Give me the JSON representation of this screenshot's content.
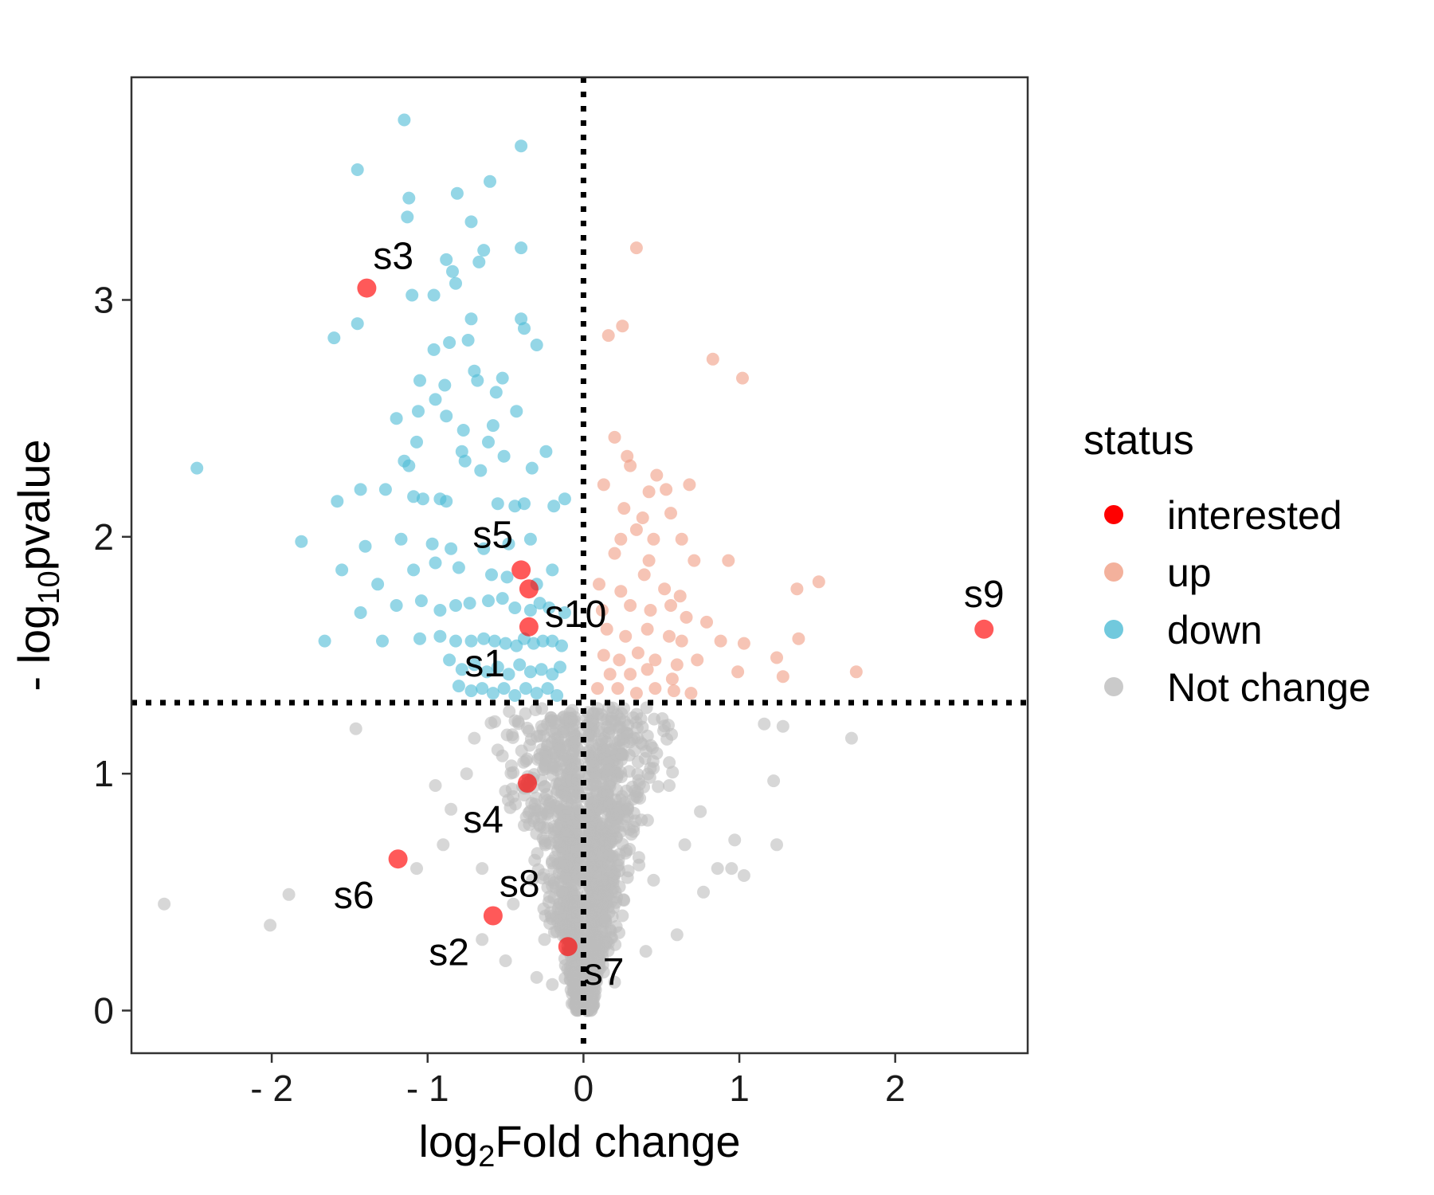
{
  "chart_data": {
    "type": "scatter",
    "xlabel": {
      "prefix": "log",
      "sub": "2",
      "suffix": "Fold change"
    },
    "ylabel": {
      "prefix": "- log",
      "sub": "10",
      "suffix": "pvalue"
    },
    "xlim": [
      -2.9,
      2.85
    ],
    "ylim": [
      -0.18,
      3.94
    ],
    "x_ticks": [
      -2,
      -1,
      0,
      1,
      2
    ],
    "x_tick_labels": [
      "- 2",
      "- 1",
      "0",
      "1",
      "2"
    ],
    "y_ticks": [
      0,
      1,
      2,
      3
    ],
    "y_tick_labels": [
      "0",
      "1",
      "2",
      "3"
    ],
    "grid": false,
    "threshold_lines": {
      "x": 0,
      "y": 1.3
    },
    "legend": {
      "title": "status",
      "position": "right",
      "entries": [
        {
          "label": "interested",
          "color": "#ff0000"
        },
        {
          "label": "up",
          "color": "#f09d83"
        },
        {
          "label": "down",
          "color": "#4dbbd5"
        },
        {
          "label": "Not change",
          "color": "#bdbdbd"
        }
      ]
    },
    "labeled_points": [
      {
        "label": "s1",
        "x": -0.35,
        "y": 1.62,
        "label_pos": "below-left"
      },
      {
        "label": "s2",
        "x": -0.58,
        "y": 0.4,
        "label_pos": "below-left"
      },
      {
        "label": "s3",
        "x": -1.39,
        "y": 3.05,
        "label_pos": "above-right"
      },
      {
        "label": "s4",
        "x": -0.36,
        "y": 0.96,
        "label_pos": "below-left"
      },
      {
        "label": "s5",
        "x": -0.4,
        "y": 1.86,
        "label_pos": "above-left"
      },
      {
        "label": "s6",
        "x": -1.19,
        "y": 0.64,
        "label_pos": "below-left"
      },
      {
        "label": "s7",
        "x": -0.1,
        "y": 0.27,
        "label_pos": "below-right"
      },
      {
        "label": "s8",
        "x": -0.58,
        "y": 0.4,
        "label_pos": "above-right"
      },
      {
        "label": "s9",
        "x": 2.57,
        "y": 1.61,
        "label_pos": "above"
      },
      {
        "label": "s10",
        "x": -0.35,
        "y": 1.78,
        "label_pos": "below-right"
      }
    ],
    "series": [
      {
        "name": "down",
        "points": [
          [
            -1.15,
            3.76
          ],
          [
            -0.4,
            3.65
          ],
          [
            -1.45,
            3.55
          ],
          [
            -0.6,
            3.5
          ],
          [
            -0.81,
            3.45
          ],
          [
            -1.12,
            3.43
          ],
          [
            -1.13,
            3.35
          ],
          [
            -0.72,
            3.33
          ],
          [
            -0.4,
            3.22
          ],
          [
            -0.64,
            3.21
          ],
          [
            -0.88,
            3.17
          ],
          [
            -0.67,
            3.16
          ],
          [
            -0.84,
            3.12
          ],
          [
            -0.82,
            3.07
          ],
          [
            -1.1,
            3.02
          ],
          [
            -0.96,
            3.02
          ],
          [
            -0.4,
            2.92
          ],
          [
            -0.72,
            2.92
          ],
          [
            -1.45,
            2.9
          ],
          [
            -0.38,
            2.88
          ],
          [
            -0.74,
            2.83
          ],
          [
            -0.86,
            2.82
          ],
          [
            -1.6,
            2.84
          ],
          [
            -0.3,
            2.81
          ],
          [
            -0.96,
            2.79
          ],
          [
            -0.7,
            2.7
          ],
          [
            -0.68,
            2.66
          ],
          [
            -1.05,
            2.66
          ],
          [
            -0.52,
            2.67
          ],
          [
            -0.89,
            2.64
          ],
          [
            -0.56,
            2.61
          ],
          [
            -0.95,
            2.58
          ],
          [
            -1.06,
            2.53
          ],
          [
            -0.88,
            2.51
          ],
          [
            -0.58,
            2.47
          ],
          [
            -0.77,
            2.45
          ],
          [
            -1.2,
            2.5
          ],
          [
            -0.43,
            2.53
          ],
          [
            -2.48,
            2.29
          ],
          [
            -1.07,
            2.4
          ],
          [
            -0.61,
            2.4
          ],
          [
            -0.78,
            2.36
          ],
          [
            -1.12,
            2.3
          ],
          [
            -0.76,
            2.32
          ],
          [
            -0.51,
            2.34
          ],
          [
            -0.24,
            2.36
          ],
          [
            -1.15,
            2.32
          ],
          [
            -0.66,
            2.28
          ],
          [
            -0.33,
            2.29
          ],
          [
            -1.58,
            2.15
          ],
          [
            -1.43,
            2.2
          ],
          [
            -1.27,
            2.2
          ],
          [
            -1.09,
            2.17
          ],
          [
            -1.03,
            2.16
          ],
          [
            -0.92,
            2.16
          ],
          [
            -0.88,
            2.15
          ],
          [
            -0.55,
            2.14
          ],
          [
            -0.44,
            2.13
          ],
          [
            -0.38,
            2.14
          ],
          [
            -0.19,
            2.13
          ],
          [
            -0.12,
            2.16
          ],
          [
            -1.81,
            1.98
          ],
          [
            -1.4,
            1.96
          ],
          [
            -1.17,
            1.99
          ],
          [
            -0.97,
            1.97
          ],
          [
            -0.85,
            1.95
          ],
          [
            -0.64,
            1.95
          ],
          [
            -0.48,
            1.97
          ],
          [
            -0.34,
            1.99
          ],
          [
            -1.55,
            1.86
          ],
          [
            -1.32,
            1.8
          ],
          [
            -1.09,
            1.86
          ],
          [
            -0.95,
            1.89
          ],
          [
            -0.8,
            1.87
          ],
          [
            -0.59,
            1.84
          ],
          [
            -0.49,
            1.83
          ],
          [
            -0.3,
            1.8
          ],
          [
            -0.2,
            1.86
          ],
          [
            -1.43,
            1.68
          ],
          [
            -1.2,
            1.71
          ],
          [
            -1.04,
            1.73
          ],
          [
            -0.92,
            1.69
          ],
          [
            -0.82,
            1.71
          ],
          [
            -0.73,
            1.72
          ],
          [
            -0.61,
            1.73
          ],
          [
            -0.52,
            1.74
          ],
          [
            -0.44,
            1.7
          ],
          [
            -0.34,
            1.69
          ],
          [
            -0.28,
            1.72
          ],
          [
            -0.22,
            1.7
          ],
          [
            -0.12,
            1.68
          ],
          [
            -1.66,
            1.56
          ],
          [
            -1.29,
            1.56
          ],
          [
            -1.05,
            1.57
          ],
          [
            -0.92,
            1.58
          ],
          [
            -0.82,
            1.56
          ],
          [
            -0.72,
            1.56
          ],
          [
            -0.64,
            1.57
          ],
          [
            -0.57,
            1.56
          ],
          [
            -0.5,
            1.55
          ],
          [
            -0.43,
            1.54
          ],
          [
            -0.38,
            1.57
          ],
          [
            -0.32,
            1.55
          ],
          [
            -0.26,
            1.56
          ],
          [
            -0.2,
            1.56
          ],
          [
            -0.14,
            1.54
          ],
          [
            -0.86,
            1.48
          ],
          [
            -0.78,
            1.44
          ],
          [
            -0.7,
            1.46
          ],
          [
            -0.62,
            1.43
          ],
          [
            -0.55,
            1.45
          ],
          [
            -0.48,
            1.42
          ],
          [
            -0.41,
            1.46
          ],
          [
            -0.34,
            1.43
          ],
          [
            -0.27,
            1.44
          ],
          [
            -0.2,
            1.42
          ],
          [
            -0.15,
            1.45
          ],
          [
            -0.8,
            1.37
          ],
          [
            -0.72,
            1.35
          ],
          [
            -0.65,
            1.36
          ],
          [
            -0.58,
            1.34
          ],
          [
            -0.51,
            1.36
          ],
          [
            -0.44,
            1.33
          ],
          [
            -0.37,
            1.36
          ],
          [
            -0.3,
            1.34
          ],
          [
            -0.23,
            1.36
          ],
          [
            -0.17,
            1.33
          ]
        ]
      },
      {
        "name": "up",
        "points": [
          [
            0.34,
            3.22
          ],
          [
            0.25,
            2.89
          ],
          [
            0.16,
            2.85
          ],
          [
            0.83,
            2.75
          ],
          [
            1.02,
            2.67
          ],
          [
            0.2,
            2.42
          ],
          [
            0.28,
            2.34
          ],
          [
            0.3,
            2.3
          ],
          [
            0.47,
            2.26
          ],
          [
            0.13,
            2.22
          ],
          [
            0.42,
            2.19
          ],
          [
            0.53,
            2.2
          ],
          [
            0.68,
            2.22
          ],
          [
            0.26,
            2.12
          ],
          [
            0.38,
            2.08
          ],
          [
            0.56,
            2.1
          ],
          [
            0.24,
            1.99
          ],
          [
            0.34,
            2.03
          ],
          [
            0.45,
            1.99
          ],
          [
            0.63,
            1.99
          ],
          [
            0.2,
            1.93
          ],
          [
            0.42,
            1.9
          ],
          [
            0.71,
            1.9
          ],
          [
            0.93,
            1.9
          ],
          [
            0.1,
            1.8
          ],
          [
            0.24,
            1.77
          ],
          [
            0.39,
            1.84
          ],
          [
            0.52,
            1.78
          ],
          [
            0.62,
            1.75
          ],
          [
            1.37,
            1.78
          ],
          [
            1.51,
            1.81
          ],
          [
            0.12,
            1.69
          ],
          [
            0.3,
            1.71
          ],
          [
            0.43,
            1.69
          ],
          [
            0.56,
            1.71
          ],
          [
            0.66,
            1.66
          ],
          [
            0.79,
            1.64
          ],
          [
            0.15,
            1.61
          ],
          [
            0.27,
            1.58
          ],
          [
            0.41,
            1.61
          ],
          [
            0.55,
            1.58
          ],
          [
            0.63,
            1.56
          ],
          [
            0.88,
            1.56
          ],
          [
            1.03,
            1.55
          ],
          [
            1.38,
            1.57
          ],
          [
            0.13,
            1.5
          ],
          [
            0.23,
            1.48
          ],
          [
            0.35,
            1.51
          ],
          [
            0.46,
            1.48
          ],
          [
            0.6,
            1.46
          ],
          [
            0.73,
            1.48
          ],
          [
            1.24,
            1.49
          ],
          [
            0.17,
            1.42
          ],
          [
            0.3,
            1.42
          ],
          [
            0.41,
            1.44
          ],
          [
            0.57,
            1.4
          ],
          [
            0.99,
            1.43
          ],
          [
            1.28,
            1.41
          ],
          [
            1.75,
            1.43
          ],
          [
            0.09,
            1.36
          ],
          [
            0.22,
            1.36
          ],
          [
            0.34,
            1.34
          ],
          [
            0.46,
            1.36
          ],
          [
            0.58,
            1.35
          ],
          [
            0.69,
            1.34
          ]
        ]
      },
      {
        "name": "Not change",
        "points": [
          [
            -2.69,
            0.45
          ],
          [
            -1.89,
            0.49
          ],
          [
            -2.01,
            0.36
          ],
          [
            -1.46,
            1.19
          ],
          [
            -1.07,
            0.6
          ],
          [
            -0.9,
            0.7
          ],
          [
            -0.95,
            0.95
          ],
          [
            -0.7,
            1.15
          ],
          [
            -0.65,
            0.3
          ],
          [
            -0.5,
            0.21
          ],
          [
            -0.3,
            0.14
          ],
          [
            -0.2,
            0.11
          ],
          [
            0.2,
            0.12
          ],
          [
            0.4,
            0.25
          ],
          [
            0.6,
            0.32
          ],
          [
            0.77,
            0.5
          ],
          [
            0.86,
            0.6
          ],
          [
            0.95,
            0.6
          ],
          [
            1.03,
            0.57
          ],
          [
            1.22,
            0.97
          ],
          [
            1.24,
            0.7
          ],
          [
            1.28,
            1.2
          ],
          [
            1.72,
            1.15
          ],
          [
            1.16,
            1.21
          ],
          [
            0.97,
            0.72
          ],
          [
            0.75,
            0.84
          ],
          [
            0.55,
            0.95
          ],
          [
            0.35,
            1.05
          ],
          [
            0.15,
            1.1
          ],
          [
            -0.15,
            1.1
          ],
          [
            -0.35,
            1.18
          ],
          [
            -0.55,
            1.1
          ],
          [
            -0.75,
            1.0
          ],
          [
            -0.85,
            0.85
          ],
          [
            -0.65,
            0.6
          ],
          [
            -0.45,
            0.45
          ],
          [
            -0.25,
            0.3
          ],
          [
            0.05,
            0.05
          ],
          [
            0.1,
            0.2
          ],
          [
            0.25,
            0.4
          ],
          [
            0.45,
            0.55
          ],
          [
            0.65,
            0.7
          ]
        ]
      },
      {
        "name": "interested",
        "points": [
          [
            -1.39,
            3.05
          ],
          [
            -0.4,
            1.86
          ],
          [
            -0.35,
            1.78
          ],
          [
            -0.35,
            1.62
          ],
          [
            -0.36,
            0.96
          ],
          [
            -1.19,
            0.64
          ],
          [
            -0.58,
            0.4
          ],
          [
            -0.1,
            0.27
          ],
          [
            2.57,
            1.61
          ]
        ]
      }
    ]
  }
}
